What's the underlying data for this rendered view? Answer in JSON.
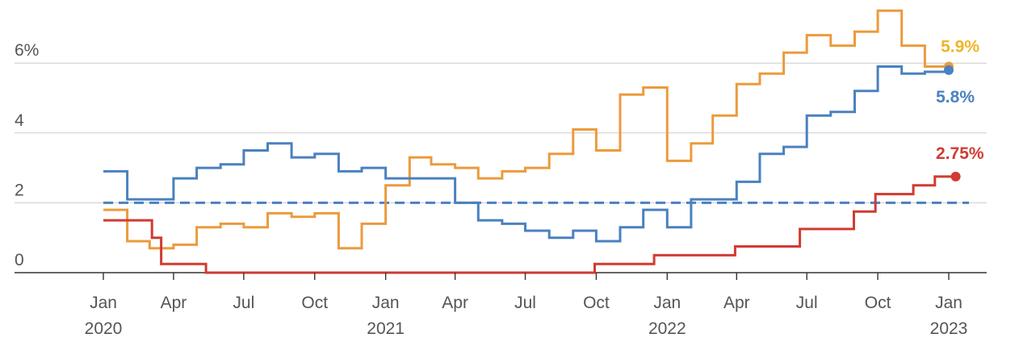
{
  "chart_data": {
    "type": "line",
    "step": true,
    "title": "",
    "xlabel": "",
    "ylabel": "",
    "xlim": [
      "2019-12-01",
      "2023-01-20"
    ],
    "ylim": [
      0,
      6.8
    ],
    "grid": true,
    "y_ticks": [
      {
        "value": 0,
        "label": "0"
      },
      {
        "value": 2,
        "label": "2"
      },
      {
        "value": 4,
        "label": "4"
      },
      {
        "value": 6,
        "label": "6%"
      }
    ],
    "x_ticks": [
      {
        "date": "2020-01-01",
        "month": "Jan",
        "year": "2020"
      },
      {
        "date": "2020-04-01",
        "month": "Apr",
        "year": ""
      },
      {
        "date": "2020-07-01",
        "month": "Jul",
        "year": ""
      },
      {
        "date": "2020-10-01",
        "month": "Oct",
        "year": ""
      },
      {
        "date": "2021-01-01",
        "month": "Jan",
        "year": "2021"
      },
      {
        "date": "2021-04-01",
        "month": "Apr",
        "year": ""
      },
      {
        "date": "2021-07-01",
        "month": "Jul",
        "year": ""
      },
      {
        "date": "2021-10-01",
        "month": "Oct",
        "year": ""
      },
      {
        "date": "2022-01-01",
        "month": "Jan",
        "year": "2022"
      },
      {
        "date": "2022-04-01",
        "month": "Apr",
        "year": ""
      },
      {
        "date": "2022-07-01",
        "month": "Jul",
        "year": ""
      },
      {
        "date": "2022-10-01",
        "month": "Oct",
        "year": ""
      },
      {
        "date": "2023-01-01",
        "month": "Jan",
        "year": "2023"
      }
    ],
    "reference_line": {
      "value": 2,
      "color": "#4a81bf",
      "style": "dashed"
    },
    "series": [
      {
        "color": "#eb9b3c",
        "end_label": "5.9%",
        "end_label_color": "#f0b429",
        "points": [
          [
            "2020-01-01",
            1.8
          ],
          [
            "2020-02-01",
            0.9
          ],
          [
            "2020-03-01",
            0.7
          ],
          [
            "2020-04-01",
            0.8
          ],
          [
            "2020-05-01",
            1.3
          ],
          [
            "2020-06-01",
            1.4
          ],
          [
            "2020-07-01",
            1.3
          ],
          [
            "2020-08-01",
            1.7
          ],
          [
            "2020-09-01",
            1.6
          ],
          [
            "2020-10-01",
            1.7
          ],
          [
            "2020-11-01",
            0.7
          ],
          [
            "2020-12-01",
            1.4
          ],
          [
            "2021-01-01",
            2.5
          ],
          [
            "2021-02-01",
            3.3
          ],
          [
            "2021-03-01",
            3.1
          ],
          [
            "2021-04-01",
            3.0
          ],
          [
            "2021-05-01",
            2.7
          ],
          [
            "2021-06-01",
            2.9
          ],
          [
            "2021-07-01",
            3.0
          ],
          [
            "2021-08-01",
            3.4
          ],
          [
            "2021-09-01",
            4.1
          ],
          [
            "2021-10-01",
            3.5
          ],
          [
            "2021-11-01",
            5.1
          ],
          [
            "2021-12-01",
            5.3
          ],
          [
            "2022-01-01",
            3.2
          ],
          [
            "2022-02-01",
            3.7
          ],
          [
            "2022-03-01",
            4.5
          ],
          [
            "2022-04-01",
            5.4
          ],
          [
            "2022-05-01",
            5.7
          ],
          [
            "2022-06-01",
            6.3
          ],
          [
            "2022-07-01",
            6.8
          ],
          [
            "2022-08-01",
            6.5
          ],
          [
            "2022-09-01",
            6.9
          ],
          [
            "2022-10-01",
            7.5
          ],
          [
            "2022-11-01",
            6.5
          ],
          [
            "2022-12-01",
            5.9
          ],
          [
            "2023-01-01",
            5.9
          ]
        ]
      },
      {
        "color": "#4a81bf",
        "end_label": "5.8%",
        "end_label_color": "#4a81bf",
        "points": [
          [
            "2020-01-01",
            2.9
          ],
          [
            "2020-02-01",
            2.1
          ],
          [
            "2020-03-01",
            2.1
          ],
          [
            "2020-04-01",
            2.7
          ],
          [
            "2020-05-01",
            3.0
          ],
          [
            "2020-06-01",
            3.1
          ],
          [
            "2020-07-01",
            3.5
          ],
          [
            "2020-08-01",
            3.7
          ],
          [
            "2020-09-01",
            3.3
          ],
          [
            "2020-10-01",
            3.4
          ],
          [
            "2020-11-01",
            2.9
          ],
          [
            "2020-12-01",
            3.0
          ],
          [
            "2021-01-01",
            2.7
          ],
          [
            "2021-02-01",
            2.7
          ],
          [
            "2021-03-01",
            2.7
          ],
          [
            "2021-04-01",
            2.0
          ],
          [
            "2021-05-01",
            1.5
          ],
          [
            "2021-06-01",
            1.4
          ],
          [
            "2021-07-01",
            1.2
          ],
          [
            "2021-08-01",
            1.0
          ],
          [
            "2021-09-01",
            1.2
          ],
          [
            "2021-10-01",
            0.9
          ],
          [
            "2021-11-01",
            1.3
          ],
          [
            "2021-12-01",
            1.8
          ],
          [
            "2022-01-01",
            1.3
          ],
          [
            "2022-02-01",
            2.1
          ],
          [
            "2022-03-01",
            2.1
          ],
          [
            "2022-04-01",
            2.6
          ],
          [
            "2022-05-01",
            3.4
          ],
          [
            "2022-06-01",
            3.6
          ],
          [
            "2022-07-01",
            4.5
          ],
          [
            "2022-08-01",
            4.6
          ],
          [
            "2022-09-01",
            5.2
          ],
          [
            "2022-10-01",
            5.9
          ],
          [
            "2022-11-01",
            5.7
          ],
          [
            "2022-12-01",
            5.75
          ],
          [
            "2023-01-01",
            5.8
          ]
        ]
      },
      {
        "color": "#d03b32",
        "end_label": "2.75%",
        "end_label_color": "#d03b32",
        "points": [
          [
            "2020-01-01",
            1.5
          ],
          [
            "2020-03-04",
            1.0
          ],
          [
            "2020-03-16",
            0.25
          ],
          [
            "2020-05-13",
            0.0
          ],
          [
            "2021-09-29",
            0.25
          ],
          [
            "2021-12-15",
            0.5
          ],
          [
            "2022-03-30",
            0.75
          ],
          [
            "2022-06-22",
            1.25
          ],
          [
            "2022-08-31",
            1.75
          ],
          [
            "2022-09-28",
            2.25
          ],
          [
            "2022-11-16",
            2.5
          ],
          [
            "2022-12-14",
            2.75
          ],
          [
            "2023-01-10",
            2.75
          ]
        ]
      }
    ]
  }
}
